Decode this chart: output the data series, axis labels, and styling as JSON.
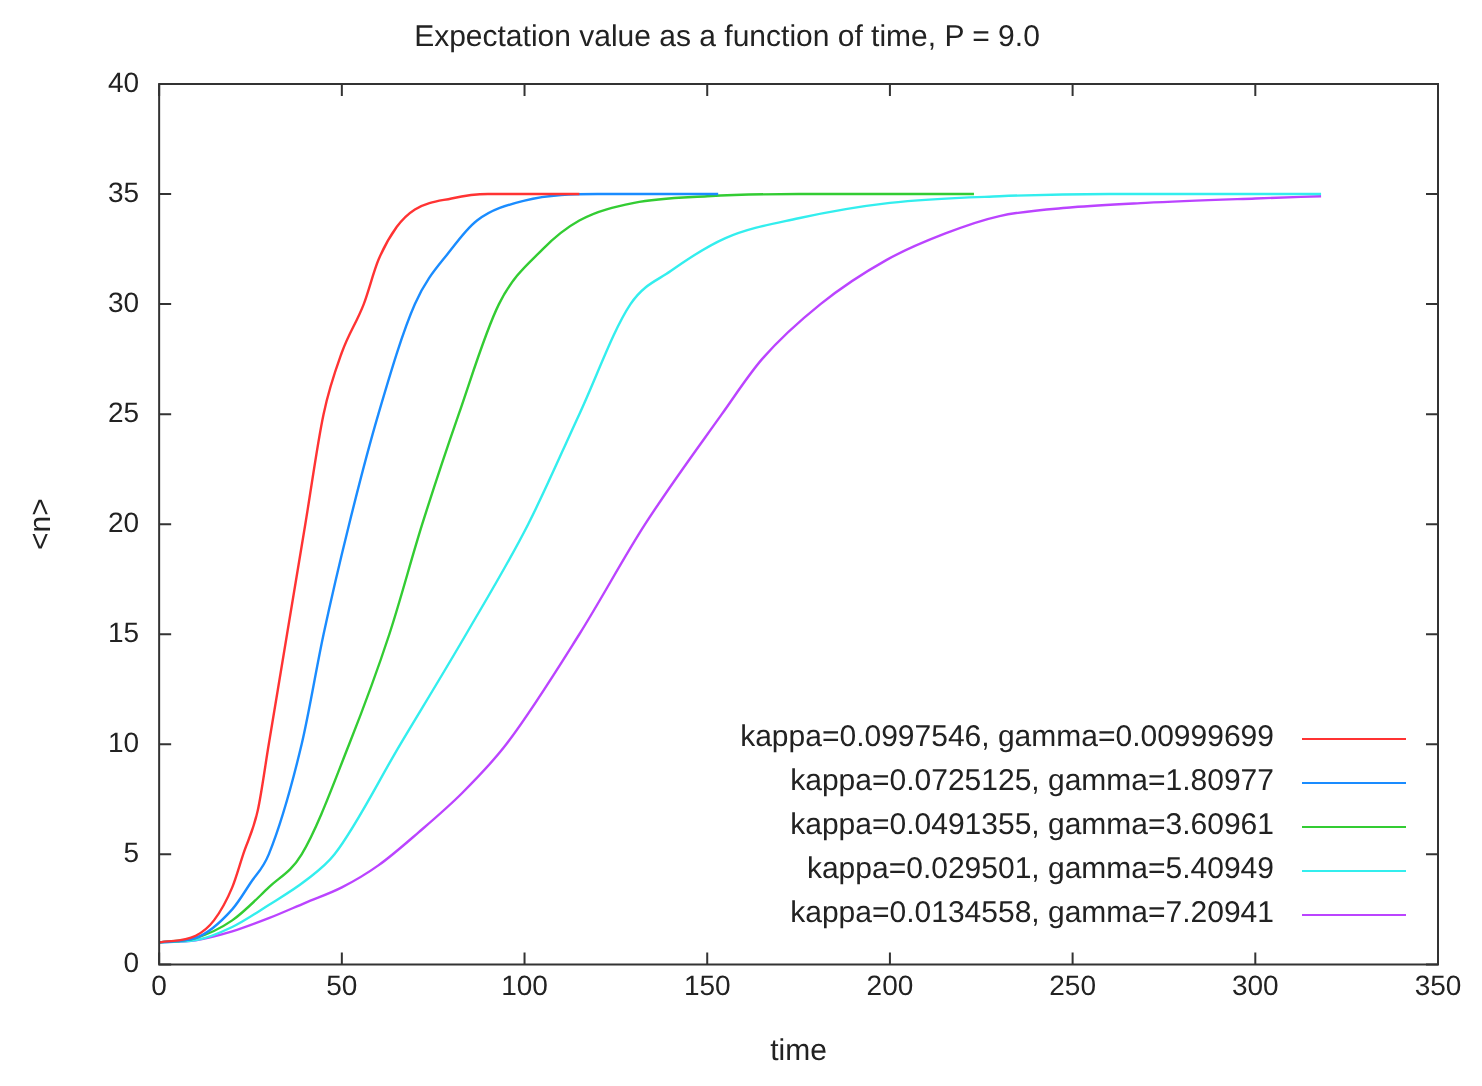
{
  "chart_data": {
    "type": "line",
    "title": "Expectation value as a function of time, P = 9.0",
    "xlabel": "time",
    "ylabel": "<n>",
    "xlim": [
      0,
      350
    ],
    "xticks": [
      0,
      50,
      100,
      150,
      200,
      250,
      300,
      350
    ],
    "ylim": [
      0,
      40
    ],
    "yticks": [
      0,
      5,
      10,
      15,
      20,
      25,
      30,
      35,
      40
    ],
    "grid": false,
    "legend": "bottom right",
    "marker": "none",
    "line_style": "solid",
    "series": [
      {
        "name": "kappa=0.0997546, gamma=0.00999699",
        "color": "#ff3333",
        "x": [
          0,
          10,
          15,
          20,
          23,
          27,
          30,
          35,
          40,
          45,
          50,
          56,
          60,
          65,
          70,
          80,
          90,
          115
        ],
        "values": [
          1,
          1.3,
          2,
          3.5,
          5,
          7,
          10,
          15,
          20,
          25,
          27.8,
          30,
          32,
          33.5,
          34.3,
          34.8,
          35,
          35
        ]
      },
      {
        "name": "kappa=0.0725125, gamma=1.80977",
        "color": "#1a8cff",
        "x": [
          0,
          10,
          20,
          25,
          30,
          39,
          45,
          52,
          60,
          70,
          80,
          87,
          100,
          120,
          153
        ],
        "values": [
          1,
          1.2,
          2.5,
          3.7,
          5,
          10,
          15,
          20,
          25,
          30,
          32.5,
          33.8,
          34.7,
          35,
          35
        ]
      },
      {
        "name": "kappa=0.0491355, gamma=3.60961",
        "color": "#33cc33",
        "x": [
          0,
          10,
          20,
          30,
          39,
          52,
          63,
          72,
          82,
          93,
          105,
          115,
          130,
          150,
          175,
          223
        ],
        "values": [
          1,
          1.2,
          2,
          3.5,
          5,
          10,
          15,
          20,
          25,
          30,
          32.5,
          33.8,
          34.6,
          34.9,
          35,
          35
        ]
      },
      {
        "name": "kappa=0.029501, gamma=5.40949",
        "color": "#33eeee",
        "x": [
          0,
          10,
          20,
          30,
          40,
          48,
          66,
          84,
          101,
          115,
          129,
          140,
          155,
          175,
          200,
          230,
          260,
          318
        ],
        "values": [
          1,
          1.1,
          1.7,
          2.7,
          3.8,
          5,
          10,
          15,
          20,
          25,
          30,
          31.5,
          33,
          33.9,
          34.6,
          34.9,
          35,
          35
        ]
      },
      {
        "name": "kappa=0.0134558, gamma=7.20941",
        "color": "#bb44ff",
        "x": [
          0,
          10,
          20,
          30,
          40,
          50,
          60,
          71,
          83,
          95,
          115,
          133,
          154,
          165,
          181,
          199,
          215,
          230,
          250,
          270,
          300,
          318
        ],
        "values": [
          1,
          1.1,
          1.5,
          2.1,
          2.8,
          3.5,
          4.5,
          6,
          7.8,
          10,
          15,
          20,
          25,
          27.5,
          30,
          32,
          33.2,
          34,
          34.4,
          34.6,
          34.8,
          34.9
        ]
      }
    ]
  }
}
